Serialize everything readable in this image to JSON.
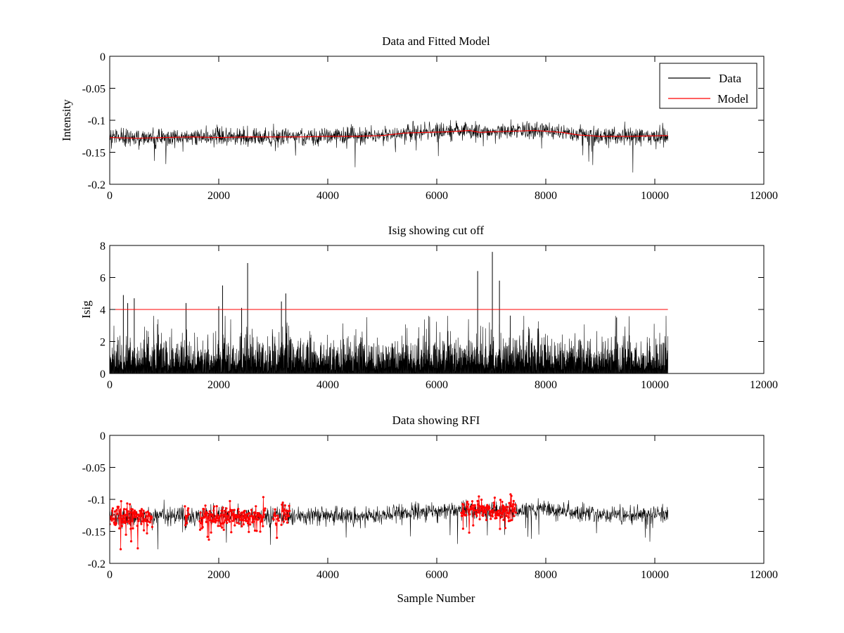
{
  "figure": {
    "background": "#ffffff"
  },
  "chart_data": [
    {
      "type": "line",
      "title": "Data and Fitted Model",
      "xlabel": "",
      "ylabel": "Intensity",
      "xlim": [
        0,
        12000
      ],
      "ylim": [
        -0.2,
        0
      ],
      "xticks": [
        0,
        2000,
        4000,
        6000,
        8000,
        10000,
        12000
      ],
      "xtick_labels": [
        "0",
        "2000",
        "4000",
        "6000",
        "8000",
        "10000",
        "12000"
      ],
      "yticks": [
        -0.2,
        -0.15,
        -0.1,
        -0.05,
        0
      ],
      "ytick_labels": [
        "-0.2",
        "-0.15",
        "-0.1",
        "-0.05",
        "0"
      ],
      "legend": {
        "position": "top-right",
        "entries": [
          {
            "label": "Data",
            "color": "#000000"
          },
          {
            "label": "Model",
            "color": "#ff0000"
          }
        ]
      },
      "series": [
        {
          "name": "Data",
          "color": "#000000",
          "style": "noise",
          "x_range": [
            0,
            10240
          ],
          "noise_sigma": 0.007,
          "n_samples": 1800,
          "baseline_x": [
            0,
            1000,
            2000,
            3000,
            4000,
            5000,
            6000,
            6600,
            7000,
            8000,
            8600,
            9000,
            10240
          ],
          "baseline_y": [
            -0.127,
            -0.127,
            -0.126,
            -0.126,
            -0.125,
            -0.124,
            -0.118,
            -0.116,
            -0.118,
            -0.116,
            -0.122,
            -0.125,
            -0.124
          ]
        },
        {
          "name": "Model",
          "color": "#ff0000",
          "style": "line",
          "x": [
            0,
            500,
            1000,
            1500,
            2000,
            2500,
            3000,
            3500,
            4000,
            4500,
            5000,
            5400,
            5800,
            6200,
            6600,
            6800,
            7000,
            7400,
            7800,
            8000,
            8300,
            8600,
            9000,
            9500,
            10240
          ],
          "y": [
            -0.127,
            -0.128,
            -0.127,
            -0.126,
            -0.127,
            -0.126,
            -0.126,
            -0.126,
            -0.125,
            -0.125,
            -0.124,
            -0.12,
            -0.119,
            -0.118,
            -0.116,
            -0.119,
            -0.118,
            -0.117,
            -0.116,
            -0.117,
            -0.119,
            -0.123,
            -0.125,
            -0.125,
            -0.124
          ]
        }
      ]
    },
    {
      "type": "line",
      "title": "Isig showing cut off",
      "xlabel": "",
      "ylabel": "Isig",
      "xlim": [
        0,
        12000
      ],
      "ylim": [
        0,
        8
      ],
      "xticks": [
        0,
        2000,
        4000,
        6000,
        8000,
        10000,
        12000
      ],
      "xtick_labels": [
        "0",
        "2000",
        "4000",
        "6000",
        "8000",
        "10000",
        "12000"
      ],
      "yticks": [
        0,
        2,
        4,
        6,
        8
      ],
      "ytick_labels": [
        "0",
        "2",
        "4",
        "6",
        "8"
      ],
      "series": [
        {
          "name": "Isig",
          "color": "#000000",
          "style": "spikes",
          "x_range": [
            0,
            10240
          ],
          "n_samples": 2400,
          "typical_max": 2.2,
          "spikes": [
            {
              "x": 250,
              "y": 4.9
            },
            {
              "x": 330,
              "y": 4.4
            },
            {
              "x": 450,
              "y": 4.7
            },
            {
              "x": 1400,
              "y": 4.4
            },
            {
              "x": 2000,
              "y": 4.2
            },
            {
              "x": 2070,
              "y": 5.5
            },
            {
              "x": 2420,
              "y": 4.1
            },
            {
              "x": 2530,
              "y": 6.9
            },
            {
              "x": 3150,
              "y": 4.5
            },
            {
              "x": 3230,
              "y": 5.0
            },
            {
              "x": 6750,
              "y": 6.4
            },
            {
              "x": 7020,
              "y": 7.6
            },
            {
              "x": 7150,
              "y": 5.8
            },
            {
              "x": 9300,
              "y": 3.5
            }
          ]
        },
        {
          "name": "Cut off",
          "color": "#ff0000",
          "style": "line",
          "x": [
            0,
            10240
          ],
          "y": [
            4,
            4
          ]
        }
      ]
    },
    {
      "type": "line",
      "title": "Data showing RFI",
      "xlabel": "Sample Number",
      "ylabel": "",
      "xlim": [
        0,
        12000
      ],
      "ylim": [
        -0.2,
        0
      ],
      "xticks": [
        0,
        2000,
        4000,
        6000,
        8000,
        10000,
        12000
      ],
      "xtick_labels": [
        "0",
        "2000",
        "4000",
        "6000",
        "8000",
        "10000",
        "12000"
      ],
      "yticks": [
        -0.2,
        -0.15,
        -0.1,
        -0.05,
        0
      ],
      "ytick_labels": [
        "-0.2",
        "-0.15",
        "-0.1",
        "-0.05",
        "0"
      ],
      "series": [
        {
          "name": "Data",
          "color": "#000000",
          "style": "noise",
          "x_range": [
            0,
            10240
          ],
          "noise_sigma": 0.007,
          "n_samples": 1800,
          "baseline_x": [
            0,
            1000,
            2000,
            3000,
            4000,
            5000,
            6000,
            6600,
            7000,
            8000,
            8600,
            9000,
            10240
          ],
          "baseline_y": [
            -0.127,
            -0.127,
            -0.126,
            -0.126,
            -0.125,
            -0.124,
            -0.118,
            -0.116,
            -0.118,
            -0.116,
            -0.122,
            -0.125,
            -0.124
          ]
        },
        {
          "name": "RFI",
          "color": "#ff0000",
          "style": "markers",
          "segments": [
            [
              0,
              780
            ],
            [
              1380,
              1450
            ],
            [
              1650,
              2850
            ],
            [
              3000,
              3100
            ],
            [
              3150,
              3300
            ],
            [
              6450,
              7450
            ]
          ],
          "noise_sigma": 0.009
        }
      ]
    }
  ]
}
